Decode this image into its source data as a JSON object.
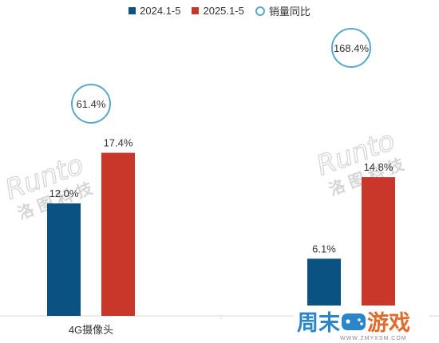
{
  "legend": {
    "items": [
      {
        "label": "2024.1-5",
        "color": "#0a5282",
        "kind": "bar"
      },
      {
        "label": "2025.1-5",
        "color": "#c8372a",
        "kind": "bar"
      },
      {
        "label": "销量同比",
        "color": "#5aa8c8",
        "kind": "circle"
      }
    ]
  },
  "watermark": {
    "brand": "Runto",
    "cn": "洛图科技"
  },
  "site_logo": {
    "text_a": "周末",
    "text_b": "游戏",
    "url": "WWW.ZMYXSM.COM"
  },
  "chart_data": {
    "type": "bar",
    "categories": [
      "4G摄像头",
      ""
    ],
    "series": [
      {
        "name": "2024.1-5",
        "values": [
          12.0,
          6.1
        ],
        "labels": [
          "12.0%",
          "6.1%"
        ],
        "color": "#0a5282"
      },
      {
        "name": "2025.1-5",
        "values": [
          17.4,
          14.8
        ],
        "labels": [
          "17.4%",
          "14.8%"
        ],
        "color": "#c8372a"
      }
    ],
    "yoy": {
      "name": "销量同比",
      "labels": [
        "61.4%",
        "168.4%"
      ],
      "values": [
        61.4,
        168.4
      ]
    },
    "ylim": [
      0,
      27
    ],
    "grid": false,
    "legend_position": "top"
  }
}
